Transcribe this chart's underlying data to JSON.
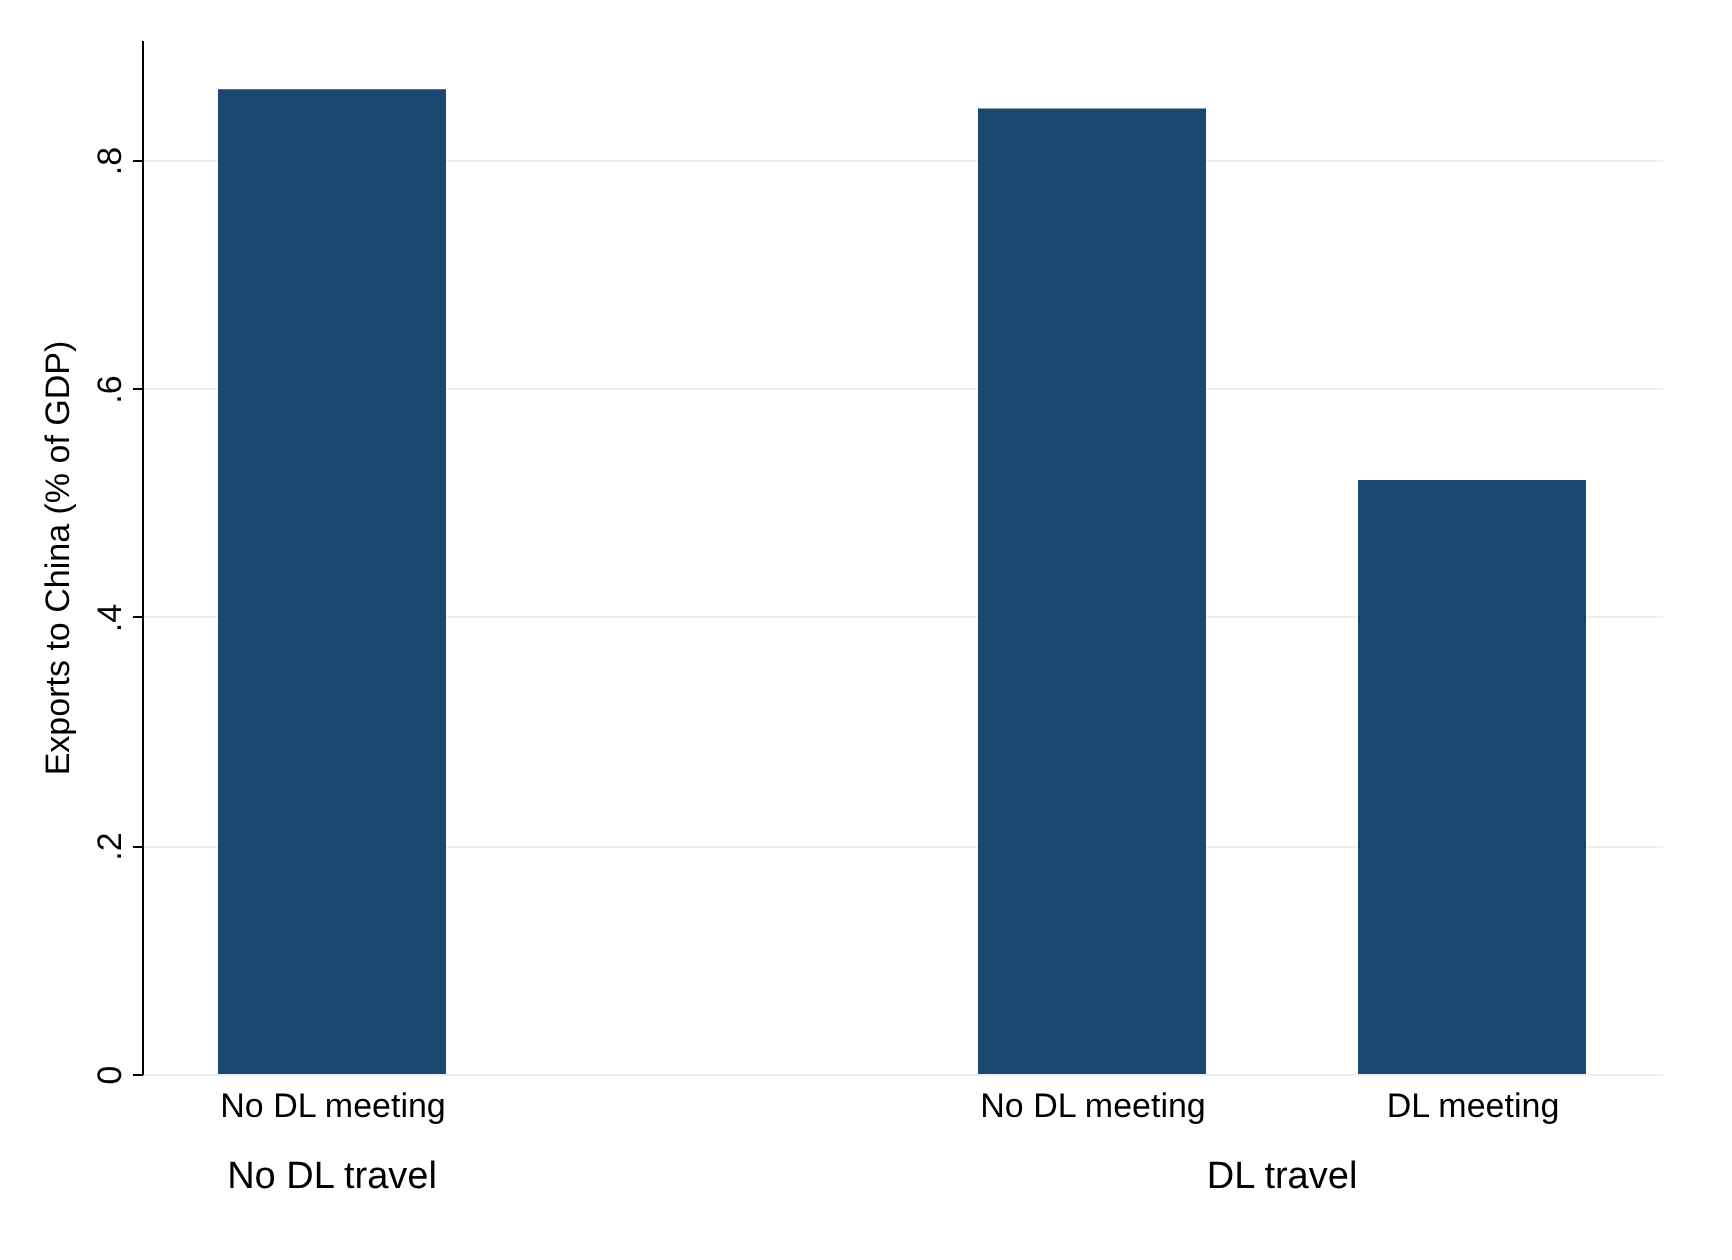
{
  "chart_data": {
    "type": "bar",
    "ylabel": "Exports to China (% of GDP)",
    "categories": [
      "No DL meeting",
      null,
      "No DL meeting",
      "DL meeting"
    ],
    "values": [
      0.862,
      null,
      0.845,
      0.52
    ],
    "color": "#1a476f",
    "ylim": [
      0,
      0.905
    ],
    "yticks": [
      {
        "value": 0,
        "label": "0"
      },
      {
        "value": 0.2,
        "label": ".2"
      },
      {
        "value": 0.4,
        "label": ".4"
      },
      {
        "value": 0.6,
        "label": ".6"
      },
      {
        "value": 0.8,
        "label": ".8"
      }
    ],
    "grid": "y",
    "annotations": [
      "No DL travel",
      "DL travel"
    ]
  }
}
